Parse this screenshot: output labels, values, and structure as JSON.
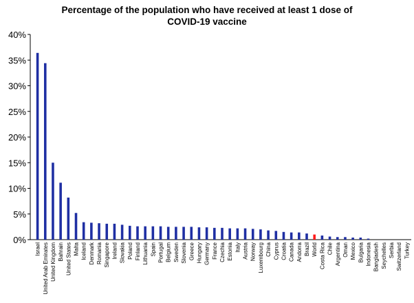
{
  "chart_data": {
    "type": "bar",
    "title_line1": "Percentage of the population who have received at least 1 dose of",
    "title_line2": "COVID-19 vaccine",
    "xlabel": "",
    "ylabel": "",
    "ylim": [
      0,
      40
    ],
    "yticks": [
      "0%",
      "5%",
      "10%",
      "15%",
      "20%",
      "25%",
      "30%",
      "35%",
      "40%"
    ],
    "grid": false,
    "bar_color": "#1f2fa3",
    "highlight_color": "#ff1a1a",
    "highlight_category": "World",
    "categories": [
      "Israel",
      "United Arab Emirates",
      "United Kingdom",
      "Bahrain",
      "United States",
      "Malta",
      "Iceland",
      "Denmark",
      "Romania",
      "Singapore",
      "Ireland",
      "Slovakia",
      "Poland",
      "Finland",
      "Lithuania",
      "Spain",
      "Portugal",
      "Belgium",
      "Sweden",
      "Slovenia",
      "Greece",
      "Hungary",
      "Germany",
      "France",
      "Czechia",
      "Estonia",
      "Italy",
      "Austria",
      "Norway",
      "Luxembourg",
      "China",
      "Cyprus",
      "Croatia",
      "Canada",
      "Andorra",
      "Brazil",
      "World",
      "Costa Rica",
      "Chile",
      "Argentina",
      "Oman",
      "Mexico",
      "Bulgaria",
      "Indonesia",
      "Bangladesh",
      "Seychelles",
      "Serbia",
      "Switzerland",
      "Turkey"
    ],
    "values": [
      36.4,
      34.4,
      15.0,
      11.1,
      8.2,
      5.2,
      3.4,
      3.3,
      3.2,
      3.1,
      3.1,
      2.9,
      2.7,
      2.6,
      2.6,
      2.6,
      2.6,
      2.5,
      2.5,
      2.5,
      2.5,
      2.4,
      2.4,
      2.3,
      2.3,
      2.2,
      2.2,
      2.2,
      2.1,
      2.0,
      1.8,
      1.7,
      1.5,
      1.4,
      1.4,
      1.2,
      1.0,
      0.8,
      0.6,
      0.5,
      0.5,
      0.4,
      0.4,
      0.2,
      0.0,
      0.0,
      0.0,
      0.0,
      0.0
    ]
  }
}
